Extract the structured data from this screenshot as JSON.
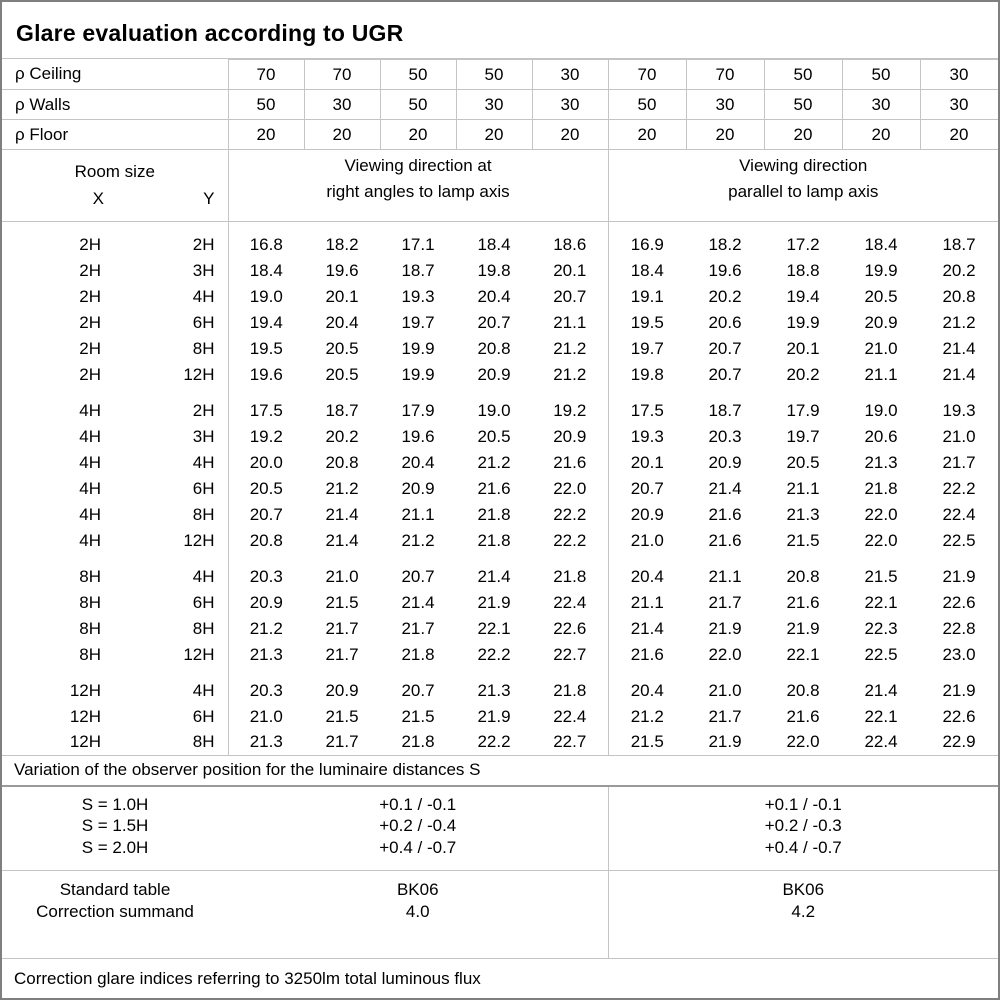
{
  "title": "Glare evaluation according to UGR",
  "columns": {
    "room_size_label": "Room size",
    "x_header": "X",
    "y_header": "Y",
    "group1": {
      "line1": "Viewing direction at",
      "line2": "right angles to lamp axis"
    },
    "group2": {
      "line1": "Viewing direction",
      "line2": "parallel to lamp axis"
    }
  },
  "reflectance_rows": [
    {
      "label": "ρ Ceiling",
      "values": [
        "70",
        "70",
        "50",
        "50",
        "30",
        "70",
        "70",
        "50",
        "50",
        "30"
      ]
    },
    {
      "label": "ρ Walls",
      "values": [
        "50",
        "30",
        "50",
        "30",
        "30",
        "50",
        "30",
        "50",
        "30",
        "30"
      ]
    },
    {
      "label": "ρ Floor",
      "values": [
        "20",
        "20",
        "20",
        "20",
        "20",
        "20",
        "20",
        "20",
        "20",
        "20"
      ]
    }
  ],
  "ugr_table": {
    "sections": [
      {
        "rows": [
          {
            "x": "2H",
            "y": "2H",
            "values": [
              "16.8",
              "18.2",
              "17.1",
              "18.4",
              "18.6",
              "16.9",
              "18.2",
              "17.2",
              "18.4",
              "18.7"
            ]
          },
          {
            "x": "2H",
            "y": "3H",
            "values": [
              "18.4",
              "19.6",
              "18.7",
              "19.8",
              "20.1",
              "18.4",
              "19.6",
              "18.8",
              "19.9",
              "20.2"
            ]
          },
          {
            "x": "2H",
            "y": "4H",
            "values": [
              "19.0",
              "20.1",
              "19.3",
              "20.4",
              "20.7",
              "19.1",
              "20.2",
              "19.4",
              "20.5",
              "20.8"
            ]
          },
          {
            "x": "2H",
            "y": "6H",
            "values": [
              "19.4",
              "20.4",
              "19.7",
              "20.7",
              "21.1",
              "19.5",
              "20.6",
              "19.9",
              "20.9",
              "21.2"
            ]
          },
          {
            "x": "2H",
            "y": "8H",
            "values": [
              "19.5",
              "20.5",
              "19.9",
              "20.8",
              "21.2",
              "19.7",
              "20.7",
              "20.1",
              "21.0",
              "21.4"
            ]
          },
          {
            "x": "2H",
            "y": "12H",
            "values": [
              "19.6",
              "20.5",
              "19.9",
              "20.9",
              "21.2",
              "19.8",
              "20.7",
              "20.2",
              "21.1",
              "21.4"
            ]
          }
        ]
      },
      {
        "rows": [
          {
            "x": "4H",
            "y": "2H",
            "values": [
              "17.5",
              "18.7",
              "17.9",
              "19.0",
              "19.2",
              "17.5",
              "18.7",
              "17.9",
              "19.0",
              "19.3"
            ]
          },
          {
            "x": "4H",
            "y": "3H",
            "values": [
              "19.2",
              "20.2",
              "19.6",
              "20.5",
              "20.9",
              "19.3",
              "20.3",
              "19.7",
              "20.6",
              "21.0"
            ]
          },
          {
            "x": "4H",
            "y": "4H",
            "values": [
              "20.0",
              "20.8",
              "20.4",
              "21.2",
              "21.6",
              "20.1",
              "20.9",
              "20.5",
              "21.3",
              "21.7"
            ]
          },
          {
            "x": "4H",
            "y": "6H",
            "values": [
              "20.5",
              "21.2",
              "20.9",
              "21.6",
              "22.0",
              "20.7",
              "21.4",
              "21.1",
              "21.8",
              "22.2"
            ]
          },
          {
            "x": "4H",
            "y": "8H",
            "values": [
              "20.7",
              "21.4",
              "21.1",
              "21.8",
              "22.2",
              "20.9",
              "21.6",
              "21.3",
              "22.0",
              "22.4"
            ]
          },
          {
            "x": "4H",
            "y": "12H",
            "values": [
              "20.8",
              "21.4",
              "21.2",
              "21.8",
              "22.2",
              "21.0",
              "21.6",
              "21.5",
              "22.0",
              "22.5"
            ]
          }
        ]
      },
      {
        "rows": [
          {
            "x": "8H",
            "y": "4H",
            "values": [
              "20.3",
              "21.0",
              "20.7",
              "21.4",
              "21.8",
              "20.4",
              "21.1",
              "20.8",
              "21.5",
              "21.9"
            ]
          },
          {
            "x": "8H",
            "y": "6H",
            "values": [
              "20.9",
              "21.5",
              "21.4",
              "21.9",
              "22.4",
              "21.1",
              "21.7",
              "21.6",
              "22.1",
              "22.6"
            ]
          },
          {
            "x": "8H",
            "y": "8H",
            "values": [
              "21.2",
              "21.7",
              "21.7",
              "22.1",
              "22.6",
              "21.4",
              "21.9",
              "21.9",
              "22.3",
              "22.8"
            ]
          },
          {
            "x": "8H",
            "y": "12H",
            "values": [
              "21.3",
              "21.7",
              "21.8",
              "22.2",
              "22.7",
              "21.6",
              "22.0",
              "22.1",
              "22.5",
              "23.0"
            ]
          }
        ]
      },
      {
        "rows": [
          {
            "x": "12H",
            "y": "4H",
            "values": [
              "20.3",
              "20.9",
              "20.7",
              "21.3",
              "21.8",
              "20.4",
              "21.0",
              "20.8",
              "21.4",
              "21.9"
            ]
          },
          {
            "x": "12H",
            "y": "6H",
            "values": [
              "21.0",
              "21.5",
              "21.5",
              "21.9",
              "22.4",
              "21.2",
              "21.7",
              "21.6",
              "22.1",
              "22.6"
            ]
          },
          {
            "x": "12H",
            "y": "8H",
            "values": [
              "21.3",
              "21.7",
              "21.8",
              "22.2",
              "22.7",
              "21.5",
              "21.9",
              "22.0",
              "22.4",
              "22.9"
            ]
          }
        ]
      }
    ]
  },
  "variation_note": "Variation of the observer position for the luminaire distances S",
  "spacing_rows": [
    {
      "label": "S = 1.0H",
      "group1": "+0.1 / -0.1",
      "group2": "+0.1 / -0.1"
    },
    {
      "label": "S = 1.5H",
      "group1": "+0.2 / -0.4",
      "group2": "+0.2 / -0.3"
    },
    {
      "label": "S = 2.0H",
      "group1": "+0.4 / -0.7",
      "group2": "+0.4 / -0.7"
    }
  ],
  "standard_block": {
    "row1_label": "Standard table",
    "row1_group1": "BK06",
    "row1_group2": "BK06",
    "row2_label": "Correction summand",
    "row2_group1": "4.0",
    "row2_group2": "4.2"
  },
  "footer_note": "Correction glare indices referring to 3250lm total luminous flux",
  "colors": {
    "grid_line": "#c4c4c4",
    "outer_border": "#7f7f7f",
    "text": "#000000",
    "background": "#ffffff"
  }
}
